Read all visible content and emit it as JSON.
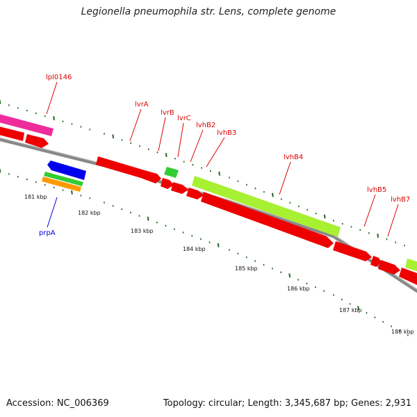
{
  "title": "Legionella pneumophila str. Lens, complete genome",
  "footer": {
    "accession": "Accession: NC_006369",
    "summary": "Topology: circular; Length: 3,345,687 bp; Genes: 2,931"
  },
  "colors": {
    "forward_gene": "#ee0000",
    "pink_feature": "#ee2c9c",
    "lime_feature": "#a8f032",
    "green_feature": "#33cc33",
    "blue_feature": "#0000ee",
    "orange_feature": "#ff9900",
    "backbone": "#888888",
    "tick": "#226622",
    "red_label": "#dd0000",
    "blue_label": "#0000dd"
  },
  "ticks": [
    {
      "label": "181 kbp"
    },
    {
      "label": "182 kbp"
    },
    {
      "label": "183 kbp"
    },
    {
      "label": "184 kbp"
    },
    {
      "label": "185 kbp"
    },
    {
      "label": "186 kbp"
    },
    {
      "label": "187 kbp"
    },
    {
      "label": "188 kbp"
    }
  ],
  "genes": [
    {
      "label": "lpl0146"
    },
    {
      "label": "lvrA"
    },
    {
      "label": "lvrB"
    },
    {
      "label": "lvrC"
    },
    {
      "label": "lvhB2"
    },
    {
      "label": "lvhB3"
    },
    {
      "label": "lvhB4"
    },
    {
      "label": "lvhB5"
    },
    {
      "label": "lvhB7"
    },
    {
      "label": "prpA"
    }
  ]
}
